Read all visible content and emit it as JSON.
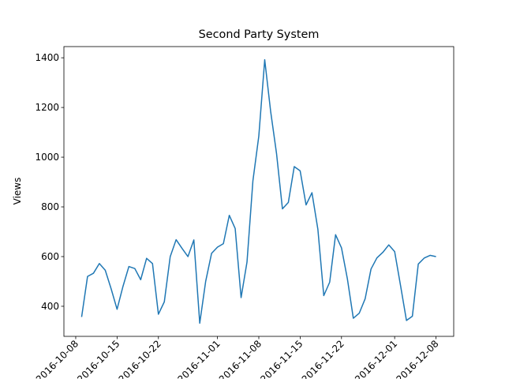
{
  "chart_data": {
    "type": "line",
    "title": "Second Party System",
    "y_label": "Views",
    "x": [
      "2016-10-09",
      "2016-10-10",
      "2016-10-11",
      "2016-10-12",
      "2016-10-13",
      "2016-10-14",
      "2016-10-15",
      "2016-10-16",
      "2016-10-17",
      "2016-10-18",
      "2016-10-19",
      "2016-10-20",
      "2016-10-21",
      "2016-10-22",
      "2016-10-23",
      "2016-10-24",
      "2016-10-25",
      "2016-10-26",
      "2016-10-27",
      "2016-10-28",
      "2016-10-29",
      "2016-10-30",
      "2016-10-31",
      "2016-11-01",
      "2016-11-02",
      "2016-11-03",
      "2016-11-04",
      "2016-11-05",
      "2016-11-06",
      "2016-11-07",
      "2016-11-08",
      "2016-11-09",
      "2016-11-10",
      "2016-11-11",
      "2016-11-12",
      "2016-11-13",
      "2016-11-14",
      "2016-11-15",
      "2016-11-16",
      "2016-11-17",
      "2016-11-18",
      "2016-11-19",
      "2016-11-20",
      "2016-11-21",
      "2016-11-22",
      "2016-11-23",
      "2016-11-24",
      "2016-11-25",
      "2016-11-26",
      "2016-11-27",
      "2016-11-28",
      "2016-11-29",
      "2016-11-30",
      "2016-12-01",
      "2016-12-02",
      "2016-12-03",
      "2016-12-04",
      "2016-12-05",
      "2016-12-06",
      "2016-12-07",
      "2016-12-08"
    ],
    "series": [
      {
        "name": "Views",
        "color": "#1f77b4",
        "values": [
          357,
          520,
          533,
          572,
          545,
          470,
          388,
          480,
          560,
          552,
          507,
          593,
          572,
          368,
          418,
          600,
          668,
          633,
          600,
          667,
          332,
          500,
          613,
          638,
          652,
          766,
          713,
          435,
          578,
          905,
          1085,
          1392,
          1185,
          1015,
          792,
          818,
          962,
          945,
          808,
          857,
          710,
          443,
          497,
          688,
          635,
          510,
          352,
          372,
          430,
          550,
          595,
          617,
          647,
          620,
          483,
          343,
          360,
          570,
          594,
          605,
          600
        ]
      }
    ],
    "xlim": [
      "2016-10-06",
      "2016-12-11"
    ],
    "xticks": [
      "2016-10-08",
      "2016-10-15",
      "2016-10-22",
      "2016-11-01",
      "2016-11-08",
      "2016-11-15",
      "2016-11-22",
      "2016-12-01",
      "2016-12-08"
    ],
    "ylim": [
      279,
      1445
    ],
    "yticks": [
      400,
      600,
      800,
      1000,
      1200,
      1400
    ]
  }
}
